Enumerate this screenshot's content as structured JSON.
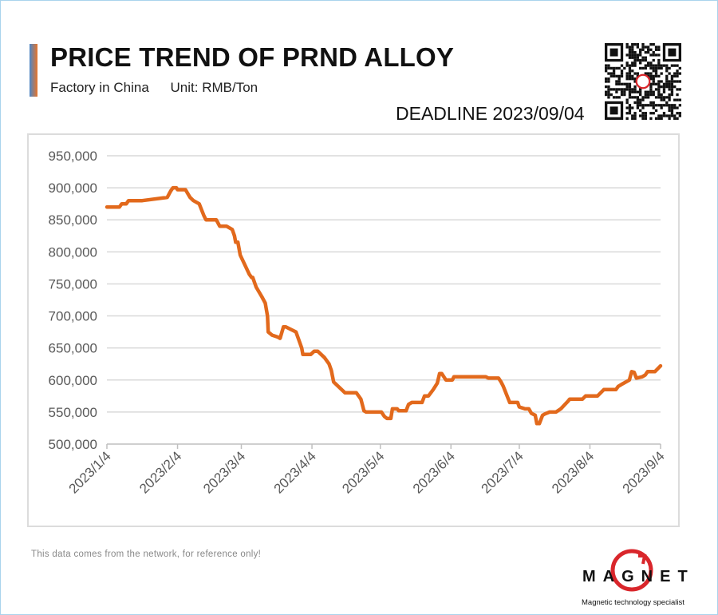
{
  "header": {
    "title": "PRICE TREND OF PRND ALLOY",
    "subtitle_location": "Factory in China",
    "subtitle_unit": "Unit: RMB/Ton",
    "deadline": "DEADLINE 2023/09/04"
  },
  "footer": {
    "note": "This data comes from the network, for reference only!",
    "logo_text": "MAGNET",
    "logo_tagline": "Magnetic technology specialist"
  },
  "colors": {
    "line": "#e2691c",
    "grid": "#d9d9d9",
    "axis_text": "#595959"
  },
  "chart_data": {
    "type": "line",
    "title": "PRICE TREND OF PRND ALLOY",
    "xlabel": "",
    "ylabel": "RMB/Ton",
    "x_unit": "days since 2023/1/4",
    "xlim": [
      0,
      243
    ],
    "ylim": [
      500000,
      950000
    ],
    "grid": true,
    "y_ticks": [
      500000,
      550000,
      600000,
      650000,
      700000,
      750000,
      800000,
      850000,
      900000,
      950000
    ],
    "y_tick_labels": [
      "500,000",
      "550,000",
      "600,000",
      "650,000",
      "700,000",
      "750,000",
      "800,000",
      "850,000",
      "900,000",
      "950,000"
    ],
    "x_ticks": [
      0,
      31,
      59,
      90,
      120,
      151,
      181,
      212,
      243
    ],
    "x_tick_labels": [
      "2023/1/4",
      "2023/2/4",
      "2023/3/4",
      "2023/4/4",
      "2023/5/4",
      "2023/6/4",
      "2023/7/4",
      "2023/8/4",
      "2023/9/4"
    ],
    "series": [
      {
        "name": "PrNd Alloy",
        "points": [
          [
            0,
            870000
          ],
          [
            5.5,
            870000
          ],
          [
            6.5,
            875000
          ],
          [
            8.5,
            875000
          ],
          [
            9.5,
            880000
          ],
          [
            15.5,
            880000
          ],
          [
            26.5,
            885000
          ],
          [
            28,
            895000
          ],
          [
            29,
            900000
          ],
          [
            30.5,
            900000
          ],
          [
            31,
            897000
          ],
          [
            34.5,
            897000
          ],
          [
            36.5,
            885000
          ],
          [
            38,
            880000
          ],
          [
            40.5,
            875000
          ],
          [
            42.5,
            857000
          ],
          [
            43.5,
            850000
          ],
          [
            48,
            850000
          ],
          [
            49.5,
            840000
          ],
          [
            52.5,
            840000
          ],
          [
            55,
            835000
          ],
          [
            56,
            825000
          ],
          [
            56.5,
            815000
          ],
          [
            57.5,
            815000
          ],
          [
            58.5,
            795000
          ],
          [
            62.5,
            765000
          ],
          [
            63.5,
            760000
          ],
          [
            64,
            760000
          ],
          [
            65.5,
            745000
          ],
          [
            68,
            730000
          ],
          [
            69.5,
            720000
          ],
          [
            70.5,
            700000
          ],
          [
            70.8,
            675000
          ],
          [
            72.5,
            670000
          ],
          [
            75,
            667000
          ],
          [
            76,
            665000
          ],
          [
            77.5,
            683000
          ],
          [
            78.5,
            683000
          ],
          [
            83,
            675000
          ],
          [
            84.5,
            660000
          ],
          [
            85.5,
            650000
          ],
          [
            86,
            640000
          ],
          [
            89.5,
            640000
          ],
          [
            91,
            645000
          ],
          [
            92.5,
            645000
          ],
          [
            95.5,
            635000
          ],
          [
            97.5,
            625000
          ],
          [
            98.5,
            615000
          ],
          [
            99.5,
            597000
          ],
          [
            104.5,
            580000
          ],
          [
            109.5,
            580000
          ],
          [
            110.5,
            575000
          ],
          [
            111.5,
            570000
          ],
          [
            112.8,
            552000
          ],
          [
            113.8,
            550000
          ],
          [
            120.5,
            550000
          ],
          [
            121.8,
            543000
          ],
          [
            122.9,
            540000
          ],
          [
            124.6,
            540000
          ],
          [
            125.3,
            555000
          ],
          [
            127.4,
            555000
          ],
          [
            128.1,
            552000
          ],
          [
            131.3,
            552000
          ],
          [
            132.4,
            562000
          ],
          [
            133.8,
            565000
          ],
          [
            138.3,
            565000
          ],
          [
            139.4,
            575000
          ],
          [
            141.1,
            575000
          ],
          [
            143.2,
            585000
          ],
          [
            145,
            595000
          ],
          [
            146,
            610000
          ],
          [
            147,
            610000
          ],
          [
            148.8,
            600000
          ],
          [
            151.6,
            600000
          ],
          [
            152.3,
            605000
          ],
          [
            166.3,
            605000
          ],
          [
            167.4,
            603000
          ],
          [
            171.9,
            603000
          ],
          [
            173,
            597000
          ],
          [
            174,
            590000
          ],
          [
            176.8,
            565000
          ],
          [
            180.3,
            565000
          ],
          [
            181,
            558000
          ],
          [
            183.5,
            555000
          ],
          [
            185.2,
            555000
          ],
          [
            186.3,
            548000
          ],
          [
            188,
            545000
          ],
          [
            188.7,
            532000
          ],
          [
            189.8,
            532000
          ],
          [
            191.2,
            545000
          ],
          [
            192.2,
            547000
          ],
          [
            194.3,
            550000
          ],
          [
            197.1,
            550000
          ],
          [
            199.2,
            555000
          ],
          [
            202.4,
            567000
          ],
          [
            203.1,
            570000
          ],
          [
            208.7,
            570000
          ],
          [
            210.1,
            575000
          ],
          [
            215.3,
            575000
          ],
          [
            216.7,
            580000
          ],
          [
            218.1,
            585000
          ],
          [
            223.4,
            585000
          ],
          [
            224.4,
            590000
          ],
          [
            225.8,
            593000
          ],
          [
            229.3,
            600000
          ],
          [
            230.3,
            613000
          ],
          [
            231.4,
            612000
          ],
          [
            232.4,
            603000
          ],
          [
            234.9,
            605000
          ],
          [
            236.3,
            608000
          ],
          [
            237.3,
            613000
          ],
          [
            240.5,
            613000
          ],
          [
            243,
            622000
          ]
        ]
      }
    ]
  }
}
